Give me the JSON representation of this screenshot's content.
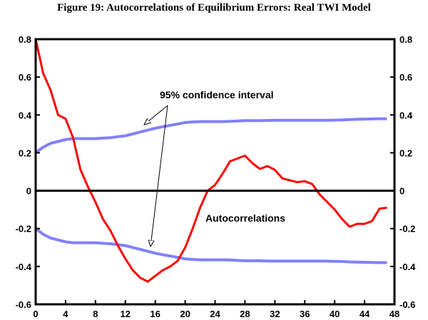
{
  "chart_data": {
    "type": "line",
    "title": "Figure 19: Autocorrelations of Equilibrium Errors: Real TWI Model",
    "xlabel": "",
    "ylabel": "",
    "xlim": [
      0,
      48
    ],
    "ylim": [
      -0.6,
      0.8
    ],
    "xticks": [
      0,
      4,
      8,
      12,
      16,
      20,
      24,
      28,
      32,
      36,
      40,
      44,
      48
    ],
    "yticks": [
      -0.6,
      -0.4,
      -0.2,
      0,
      0.2,
      0.4,
      0.6,
      0.8
    ],
    "ytick_labels": [
      "-0.6",
      "-0.4",
      "-0.2",
      "0",
      "0.2",
      "0.4",
      "0.6",
      "0.8"
    ],
    "grid": false,
    "x": [
      0,
      1,
      2,
      3,
      4,
      5,
      6,
      7,
      8,
      9,
      10,
      11,
      12,
      13,
      14,
      15,
      16,
      17,
      18,
      19,
      20,
      21,
      22,
      23,
      24,
      25,
      26,
      27,
      28,
      29,
      30,
      31,
      32,
      33,
      34,
      35,
      36,
      37,
      38,
      39,
      40,
      41,
      42,
      43,
      44,
      45,
      46,
      47
    ],
    "series": [
      {
        "name": "Autocorrelations",
        "color": "#ff0000",
        "values": [
          0.8,
          0.62,
          0.53,
          0.4,
          0.38,
          0.28,
          0.11,
          0.02,
          -0.06,
          -0.15,
          -0.21,
          -0.29,
          -0.36,
          -0.42,
          -0.46,
          -0.48,
          -0.45,
          -0.42,
          -0.4,
          -0.37,
          -0.3,
          -0.2,
          -0.09,
          0.0,
          0.03,
          0.09,
          0.155,
          0.17,
          0.185,
          0.145,
          0.115,
          0.13,
          0.11,
          0.065,
          0.055,
          0.045,
          0.05,
          0.035,
          -0.02,
          -0.06,
          -0.1,
          -0.15,
          -0.19,
          -0.175,
          -0.175,
          -0.16,
          -0.095,
          -0.09
        ]
      },
      {
        "name": "95% confidence interval (upper)",
        "color": "#8080ff",
        "values": [
          0.2,
          0.23,
          0.25,
          0.26,
          0.27,
          0.275,
          0.275,
          0.275,
          0.275,
          0.278,
          0.28,
          0.285,
          0.29,
          0.3,
          0.31,
          0.32,
          0.33,
          0.338,
          0.345,
          0.352,
          0.36,
          0.363,
          0.365,
          0.365,
          0.365,
          0.365,
          0.366,
          0.368,
          0.37,
          0.37,
          0.37,
          0.371,
          0.372,
          0.372,
          0.372,
          0.372,
          0.372,
          0.372,
          0.372,
          0.372,
          0.373,
          0.374,
          0.376,
          0.377,
          0.378,
          0.379,
          0.38,
          0.38
        ]
      },
      {
        "name": "95% confidence interval (lower)",
        "color": "#8080ff",
        "values": [
          -0.2,
          -0.23,
          -0.25,
          -0.26,
          -0.27,
          -0.275,
          -0.275,
          -0.275,
          -0.275,
          -0.278,
          -0.28,
          -0.285,
          -0.29,
          -0.3,
          -0.31,
          -0.32,
          -0.33,
          -0.338,
          -0.345,
          -0.352,
          -0.36,
          -0.363,
          -0.365,
          -0.365,
          -0.365,
          -0.365,
          -0.366,
          -0.368,
          -0.37,
          -0.37,
          -0.37,
          -0.371,
          -0.372,
          -0.372,
          -0.372,
          -0.372,
          -0.372,
          -0.372,
          -0.372,
          -0.372,
          -0.373,
          -0.374,
          -0.376,
          -0.377,
          -0.378,
          -0.379,
          -0.38,
          -0.38
        ]
      }
    ],
    "annotations": {
      "ci_label": "95% confidence interval",
      "acf_label": "Autocorrelations"
    }
  }
}
